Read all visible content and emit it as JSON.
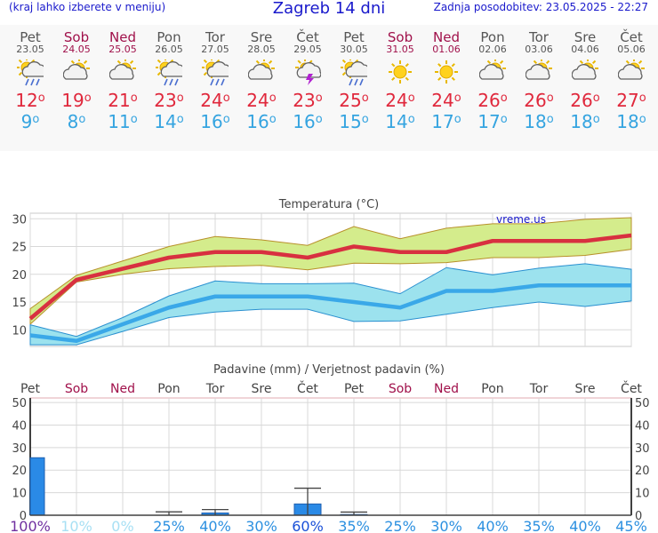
{
  "header": {
    "left_note": "(kraj lahko izberete v meniju)",
    "title": "Zagreb 14 dni",
    "updated": "Zadnja posodobitev: 23.05.2025 - 22:27"
  },
  "days": [
    {
      "name": "Pet",
      "date": "23.05",
      "weekend": false,
      "icon": "sun-cloud-rain-icon",
      "tmax": "12",
      "tmin": "9"
    },
    {
      "name": "Sob",
      "date": "24.05",
      "weekend": true,
      "icon": "sun-cloud-icon",
      "tmax": "19",
      "tmin": "8"
    },
    {
      "name": "Ned",
      "date": "25.05",
      "weekend": true,
      "icon": "sun-cloud-icon",
      "tmax": "21",
      "tmin": "11"
    },
    {
      "name": "Pon",
      "date": "26.05",
      "weekend": false,
      "icon": "sun-cloud-rain-icon",
      "tmax": "23",
      "tmin": "14"
    },
    {
      "name": "Tor",
      "date": "27.05",
      "weekend": false,
      "icon": "sun-cloud-rain-icon",
      "tmax": "24",
      "tmin": "16"
    },
    {
      "name": "Sre",
      "date": "28.05",
      "weekend": false,
      "icon": "sun-cloud-icon",
      "tmax": "24",
      "tmin": "16"
    },
    {
      "name": "Čet",
      "date": "29.05",
      "weekend": false,
      "icon": "cloud-lightning-icon",
      "tmax": "23",
      "tmin": "16"
    },
    {
      "name": "Pet",
      "date": "30.05",
      "weekend": false,
      "icon": "sun-cloud-rain-icon",
      "tmax": "25",
      "tmin": "15"
    },
    {
      "name": "Sob",
      "date": "31.05",
      "weekend": true,
      "icon": "sun-icon",
      "tmax": "24",
      "tmin": "14"
    },
    {
      "name": "Ned",
      "date": "01.06",
      "weekend": true,
      "icon": "sun-icon",
      "tmax": "24",
      "tmin": "17"
    },
    {
      "name": "Pon",
      "date": "02.06",
      "weekend": false,
      "icon": "sun-cloud-icon",
      "tmax": "26",
      "tmin": "17"
    },
    {
      "name": "Tor",
      "date": "03.06",
      "weekend": false,
      "icon": "sun-cloud-icon",
      "tmax": "26",
      "tmin": "18"
    },
    {
      "name": "Sre",
      "date": "04.06",
      "weekend": false,
      "icon": "sun-cloud-icon",
      "tmax": "26",
      "tmin": "18"
    },
    {
      "name": "Čet",
      "date": "05.06",
      "weekend": false,
      "icon": "sun-cloud-icon",
      "tmax": "27",
      "tmin": "18"
    }
  ],
  "colors": {
    "max": "#d83040",
    "min": "#3aa8e8",
    "max_band": "#d4ec8c",
    "min_band": "#9ce2ee",
    "weekend": "#a0104a",
    "bar": "#2a8ae6"
  },
  "chart_data": [
    {
      "type": "line",
      "title": "Temperatura (°C)",
      "watermark": "vreme.us",
      "ylim": [
        7,
        31
      ],
      "yticks": [
        "10",
        "15",
        "20",
        "25",
        "30"
      ],
      "grid": true,
      "series": [
        {
          "values": [
            12,
            19,
            21,
            23,
            24,
            24,
            23,
            25,
            24,
            24,
            26,
            26,
            26,
            27
          ],
          "band_low": [
            11,
            18.6,
            20,
            21,
            21.4,
            21.6,
            20.8,
            22,
            21.9,
            22.1,
            23,
            23,
            23.4,
            24.5
          ],
          "band_high": [
            13.8,
            19.8,
            22.4,
            25,
            26.8,
            26.2,
            25.2,
            28.6,
            26.4,
            28.3,
            29.1,
            29.1,
            29.9,
            30.2
          ]
        },
        {
          "values": [
            9,
            8,
            11,
            14,
            16,
            16,
            16,
            15,
            14,
            17,
            17,
            18,
            18,
            18
          ],
          "band_low": [
            7.3,
            7.3,
            9.7,
            12.2,
            13.2,
            13.7,
            13.7,
            11.5,
            11.6,
            12.8,
            14,
            15,
            14.2,
            15.2
          ],
          "band_high": [
            10.9,
            8.8,
            12.2,
            16.1,
            18.8,
            18.3,
            18.3,
            18.4,
            16.5,
            21.2,
            19.9,
            21.1,
            21.9,
            20.9
          ]
        }
      ]
    },
    {
      "type": "bar",
      "title": "Padavine (mm) / Verjetnost padavin (%)",
      "day_labels": [
        "Pet",
        "Sob",
        "Ned",
        "Pon",
        "Tor",
        "Sre",
        "Čet",
        "Pet",
        "Sob",
        "Ned",
        "Pon",
        "Tor",
        "Sre",
        "Čet"
      ],
      "weekend": [
        false,
        true,
        true,
        false,
        false,
        false,
        false,
        false,
        true,
        true,
        false,
        false,
        false,
        false
      ],
      "ylim": [
        0,
        52
      ],
      "yticks": [
        "0",
        "10",
        "20",
        "30",
        "40",
        "50"
      ],
      "precip_mm": [
        25.5,
        0,
        0,
        0,
        1,
        0,
        5,
        0.3,
        0,
        0,
        0,
        0,
        0,
        0
      ],
      "error_high": [
        null,
        null,
        null,
        1.5,
        2.5,
        null,
        12,
        1.4,
        null,
        null,
        null,
        null,
        null,
        null
      ],
      "probability": [
        "100%",
        "10%",
        "0%",
        "25%",
        "40%",
        "30%",
        "60%",
        "35%",
        "25%",
        "30%",
        "40%",
        "35%",
        "40%",
        "45%"
      ],
      "probability_value": [
        100,
        10,
        0,
        25,
        40,
        30,
        60,
        35,
        25,
        30,
        40,
        35,
        40,
        45
      ]
    }
  ]
}
